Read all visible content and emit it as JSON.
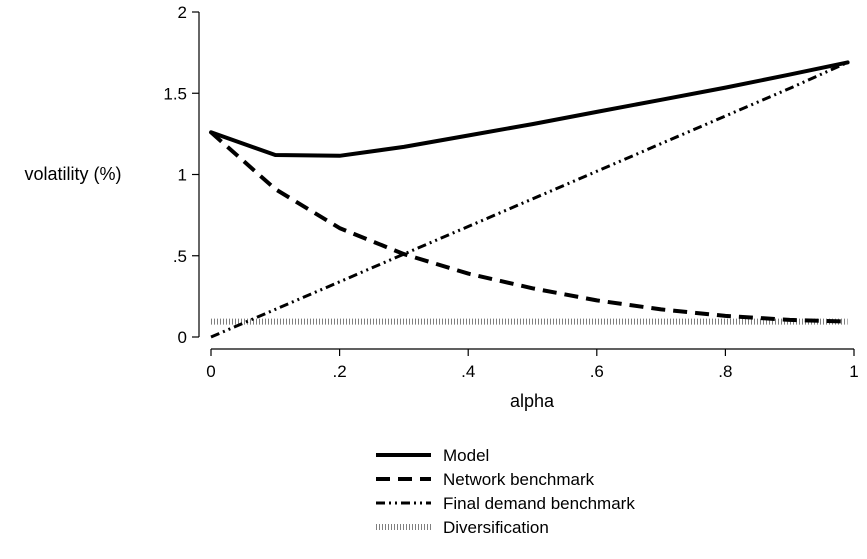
{
  "chart_data": {
    "type": "line",
    "xlabel": "alpha",
    "ylabel": "volatility (%)",
    "xlim": [
      0,
      1
    ],
    "ylim": [
      0,
      2
    ],
    "x_ticks": [
      {
        "value": 0,
        "label": "0"
      },
      {
        "value": 0.2,
        "label": ".2"
      },
      {
        "value": 0.4,
        "label": ".4"
      },
      {
        "value": 0.6,
        "label": ".6"
      },
      {
        "value": 0.8,
        "label": ".8"
      },
      {
        "value": 1,
        "label": "1"
      }
    ],
    "y_ticks": [
      {
        "value": 0,
        "label": "0"
      },
      {
        "value": 0.5,
        "label": ".5"
      },
      {
        "value": 1,
        "label": "1"
      },
      {
        "value": 1.5,
        "label": "1.5"
      },
      {
        "value": 2,
        "label": "2"
      }
    ],
    "grid": false,
    "legend_position": "bottom",
    "x": [
      0,
      0.1,
      0.2,
      0.3,
      0.4,
      0.5,
      0.6,
      0.7,
      0.8,
      0.9,
      0.99
    ],
    "series": [
      {
        "name": "Model",
        "style": "solid",
        "color": "#000000",
        "values": [
          1.26,
          1.12,
          1.115,
          1.17,
          1.24,
          1.31,
          1.385,
          1.46,
          1.535,
          1.615,
          1.69
        ]
      },
      {
        "name": "Network benchmark",
        "style": "dash",
        "color": "#000000",
        "values": [
          1.26,
          0.91,
          0.67,
          0.51,
          0.39,
          0.3,
          0.225,
          0.17,
          0.13,
          0.105,
          0.095
        ]
      },
      {
        "name": "Final demand benchmark",
        "style": "dash-dot-dot",
        "color": "#000000",
        "values": [
          0,
          0.17,
          0.34,
          0.51,
          0.68,
          0.85,
          1.02,
          1.19,
          1.36,
          1.53,
          1.69
        ]
      },
      {
        "name": "Diversification",
        "style": "dotted",
        "color": "#7f7f7f",
        "values": [
          0.095,
          0.095,
          0.095,
          0.095,
          0.095,
          0.095,
          0.095,
          0.095,
          0.095,
          0.095,
          0.095
        ]
      }
    ]
  }
}
